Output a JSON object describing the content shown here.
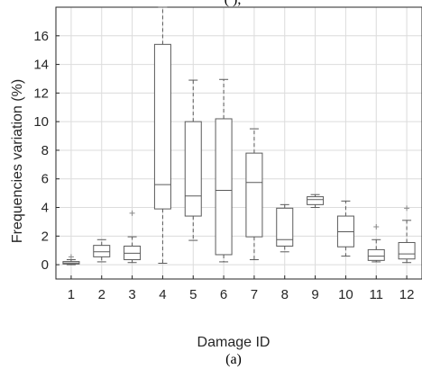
{
  "chart_data": {
    "type": "box",
    "title_fragment": "(                          ),",
    "xlabel": "Damage ID",
    "ylabel": "Frequencies variation (%)",
    "caption": "(a)",
    "ylim": [
      -1,
      18
    ],
    "yticks": [
      0,
      2,
      4,
      6,
      8,
      10,
      12,
      14,
      16
    ],
    "grid": true,
    "categories": [
      "1",
      "2",
      "3",
      "4",
      "5",
      "6",
      "7",
      "8",
      "9",
      "10",
      "11",
      "12"
    ],
    "boxes": [
      {
        "id": "1",
        "whisker_low": 0.0,
        "q1": 0.05,
        "median": 0.12,
        "q3": 0.22,
        "whisker_high": 0.35,
        "outliers": [
          0.55
        ]
      },
      {
        "id": "2",
        "whisker_low": 0.2,
        "q1": 0.55,
        "median": 0.9,
        "q3": 1.35,
        "whisker_high": 1.75,
        "outliers": []
      },
      {
        "id": "3",
        "whisker_low": 0.15,
        "q1": 0.35,
        "median": 0.8,
        "q3": 1.3,
        "whisker_high": 1.95,
        "outliers": [
          3.6
        ]
      },
      {
        "id": "4",
        "whisker_low": 0.1,
        "q1": 3.9,
        "median": 5.6,
        "q3": 15.4,
        "whisker_high": 18.0,
        "outliers": []
      },
      {
        "id": "5",
        "whisker_low": 1.7,
        "q1": 3.4,
        "median": 4.8,
        "q3": 10.0,
        "whisker_high": 12.9,
        "outliers": []
      },
      {
        "id": "6",
        "whisker_low": 0.2,
        "q1": 0.7,
        "median": 5.2,
        "q3": 10.2,
        "whisker_high": 12.95,
        "outliers": []
      },
      {
        "id": "7",
        "whisker_low": 0.35,
        "q1": 1.95,
        "median": 5.75,
        "q3": 7.8,
        "whisker_high": 9.5,
        "outliers": []
      },
      {
        "id": "8",
        "whisker_low": 0.9,
        "q1": 1.3,
        "median": 1.75,
        "q3": 3.95,
        "whisker_high": 4.2,
        "outliers": []
      },
      {
        "id": "9",
        "whisker_low": 4.0,
        "q1": 4.2,
        "median": 4.55,
        "q3": 4.75,
        "whisker_high": 4.9,
        "outliers": []
      },
      {
        "id": "10",
        "whisker_low": 0.6,
        "q1": 1.25,
        "median": 2.3,
        "q3": 3.4,
        "whisker_high": 4.45,
        "outliers": []
      },
      {
        "id": "11",
        "whisker_low": 0.2,
        "q1": 0.3,
        "median": 0.6,
        "q3": 1.05,
        "whisker_high": 1.75,
        "outliers": [
          2.65
        ]
      },
      {
        "id": "12",
        "whisker_low": 0.15,
        "q1": 0.4,
        "median": 0.75,
        "q3": 1.55,
        "whisker_high": 3.1,
        "outliers": [
          3.95
        ]
      }
    ],
    "colors": {
      "box": "#5a5a5a",
      "whisker": "#5a5a5a",
      "outlier": "#8a8a8a",
      "grid": "#dcdcdc",
      "axis": "#262626"
    }
  }
}
